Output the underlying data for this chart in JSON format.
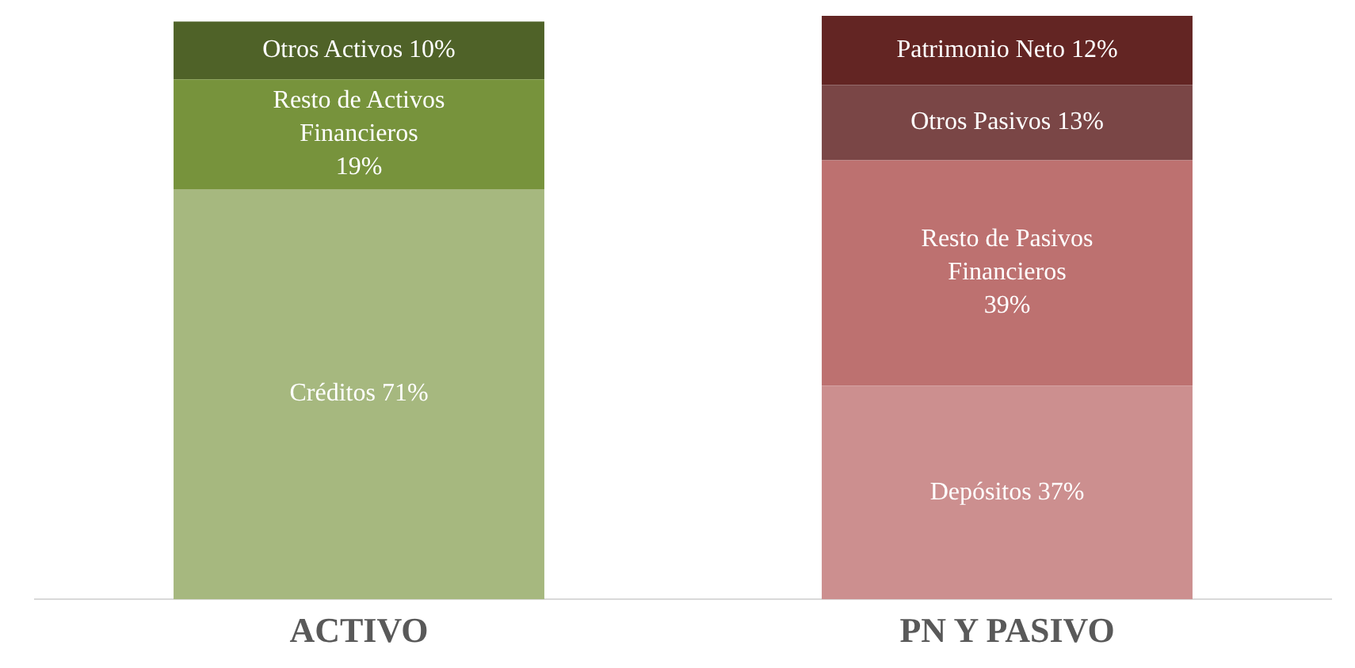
{
  "chart_data": {
    "type": "bar",
    "stacked": true,
    "categories": [
      "ACTIVO",
      "PN Y PASIVO"
    ],
    "series": [
      {
        "name": "Créditos",
        "color": "#a6b87f",
        "values": [
          71,
          null
        ],
        "value_labels": [
          "71%",
          null
        ]
      },
      {
        "name": "Resto de Activos Financieros",
        "color": "#77933c",
        "values": [
          19,
          null
        ],
        "value_labels": [
          "19%",
          null
        ]
      },
      {
        "name": "Otros Activos",
        "color": "#4f6228",
        "values": [
          10,
          null
        ],
        "value_labels": [
          "10%",
          null
        ]
      },
      {
        "name": "Depósitos",
        "color": "#cc8f8f",
        "values": [
          null,
          37
        ],
        "value_labels": [
          null,
          "37%"
        ]
      },
      {
        "name": "Resto de Pasivos Financieros",
        "color": "#bd7170",
        "values": [
          null,
          39
        ],
        "value_labels": [
          null,
          "39%"
        ]
      },
      {
        "name": "Otros Pasivos",
        "color": "#7a4646",
        "values": [
          null,
          13
        ],
        "value_labels": [
          null,
          "13%"
        ]
      },
      {
        "name": "Patrimonio Neto",
        "color": "#632523",
        "values": [
          null,
          12
        ],
        "value_labels": [
          null,
          "12%"
        ]
      }
    ],
    "legend": false,
    "grid": false,
    "tick_labels": "x"
  }
}
